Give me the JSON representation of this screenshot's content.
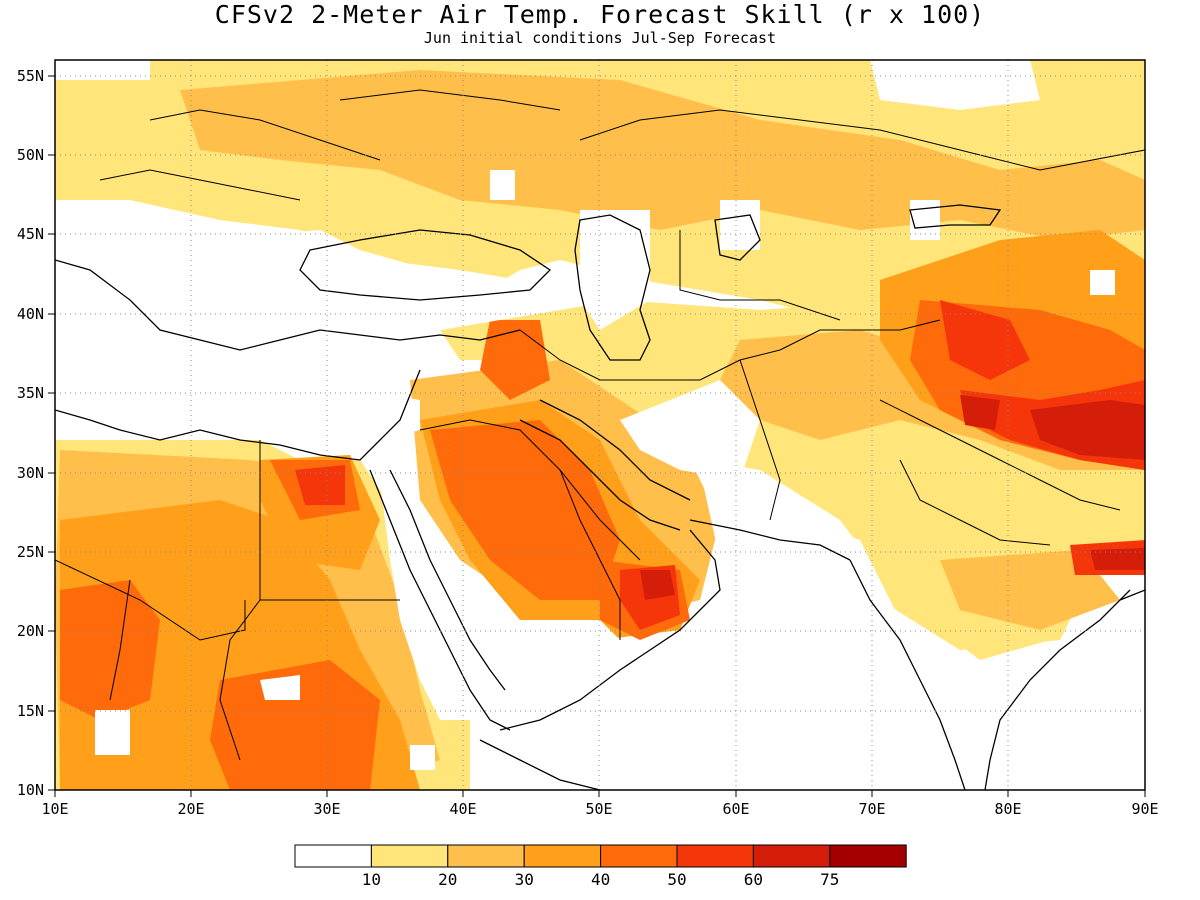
{
  "title": "CFSv2 2-Meter Air Temp. Forecast Skill (r x 100)",
  "subtitle": "Jun initial conditions  Jul-Sep Forecast",
  "map": {
    "lon_range": [
      10,
      90
    ],
    "lat_range": [
      10,
      56
    ],
    "lat_ticks": [
      "55N",
      "50N",
      "45N",
      "40N",
      "35N",
      "30N",
      "25N",
      "20N",
      "15N",
      "10N"
    ],
    "lon_ticks": [
      "10E",
      "20E",
      "30E",
      "40E",
      "50E",
      "60E",
      "70E",
      "80E",
      "90E"
    ]
  },
  "colorbar": {
    "colors": [
      "#ffffff",
      "#ffe57a",
      "#ffbf4a",
      "#ff9f1a",
      "#ff6a0a",
      "#f5360a",
      "#d41e0a",
      "#a50000"
    ],
    "labels": [
      "10",
      "20",
      "30",
      "40",
      "50",
      "60",
      "75"
    ]
  }
}
